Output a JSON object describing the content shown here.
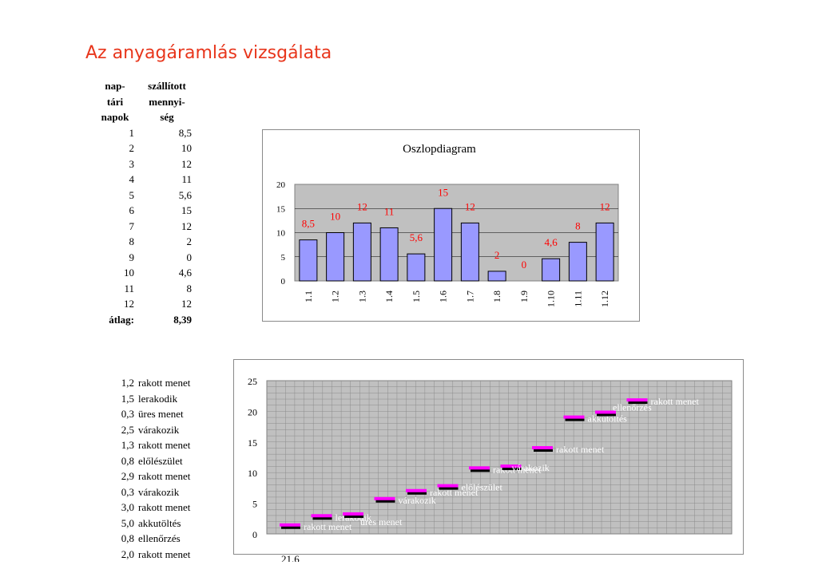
{
  "title": "Az anyagáramlás vizsgálata",
  "table": {
    "header_col1": [
      "nap-",
      "tári",
      "napok"
    ],
    "header_col2": [
      "szállított",
      "mennyi-",
      "ség"
    ],
    "rows": [
      [
        "1",
        "8,5"
      ],
      [
        "2",
        "10"
      ],
      [
        "3",
        "12"
      ],
      [
        "4",
        "11"
      ],
      [
        "5",
        "5,6"
      ],
      [
        "6",
        "15"
      ],
      [
        "7",
        "12"
      ],
      [
        "8",
        "2"
      ],
      [
        "9",
        "0"
      ],
      [
        "10",
        "4,6"
      ],
      [
        "11",
        "8"
      ],
      [
        "12",
        "12"
      ]
    ],
    "avg_label": "átlag:",
    "avg_value": "8,39"
  },
  "activities": [
    [
      "1,2",
      "rakott menet"
    ],
    [
      "1,5",
      "lerakodik"
    ],
    [
      "0,3",
      "üres menet"
    ],
    [
      "2,5",
      "várakozik"
    ],
    [
      "1,3",
      "rakott menet"
    ],
    [
      "0,8",
      "előlészület"
    ],
    [
      "2,9",
      "rakott menet"
    ],
    [
      "0,3",
      "várakozik"
    ],
    [
      "3,0",
      "rakott menet"
    ],
    [
      "5,0",
      "akkutöltés"
    ],
    [
      "0,8",
      "ellenőrzés"
    ],
    [
      "2,0",
      "rakott menet"
    ]
  ],
  "stray_text": "21,6",
  "colors": {
    "title": "#e8361c",
    "bar_fill": "#9999ff",
    "plot_bg": "#c0c0c0",
    "data_label": "#ff0000",
    "marker_magenta": "#ff00ff",
    "marker_black": "#000000"
  },
  "chart_data": [
    {
      "type": "bar",
      "title": "Oszlopdiagram",
      "categories": [
        "1.1",
        "1.2",
        "1.3",
        "1.4",
        "1.5",
        "1.6",
        "1.7",
        "1.8",
        "1.9",
        "1.10",
        "1.11",
        "1.12"
      ],
      "values": [
        8.5,
        10,
        12,
        11,
        5.6,
        15,
        12,
        2,
        0,
        4.6,
        8,
        12
      ],
      "data_labels": [
        "8,5",
        "10",
        "12",
        "11",
        "5,6",
        "15",
        "12",
        "2",
        "0",
        "4,6",
        "8",
        "12"
      ],
      "ylim": [
        0,
        20
      ],
      "yticks": [
        0,
        5,
        10,
        15,
        20
      ],
      "grid": true,
      "xlabel": "",
      "ylabel": ""
    },
    {
      "type": "scatter",
      "ylim": [
        0,
        25
      ],
      "yticks": [
        0,
        5,
        10,
        15,
        20,
        25
      ],
      "grid": true,
      "points": [
        {
          "x": 1,
          "y": 1.2,
          "label": "rakott menet"
        },
        {
          "x": 2,
          "y": 2.7,
          "label": "lerakodik"
        },
        {
          "x": 3,
          "y": 3.0,
          "label": "üres menet"
        },
        {
          "x": 4,
          "y": 5.5,
          "label": "várakozik"
        },
        {
          "x": 5,
          "y": 6.8,
          "label": "rakott menet"
        },
        {
          "x": 6,
          "y": 7.6,
          "label": "előlészület"
        },
        {
          "x": 7,
          "y": 10.5,
          "label": "rakott menet"
        },
        {
          "x": 8,
          "y": 10.8,
          "label": "várakozik"
        },
        {
          "x": 9,
          "y": 13.8,
          "label": "rakott menet"
        },
        {
          "x": 10,
          "y": 18.8,
          "label": "akkutöltés"
        },
        {
          "x": 11,
          "y": 19.6,
          "label": "ellenőrzés"
        },
        {
          "x": 12,
          "y": 21.6,
          "label": "rakott menet"
        }
      ]
    }
  ]
}
